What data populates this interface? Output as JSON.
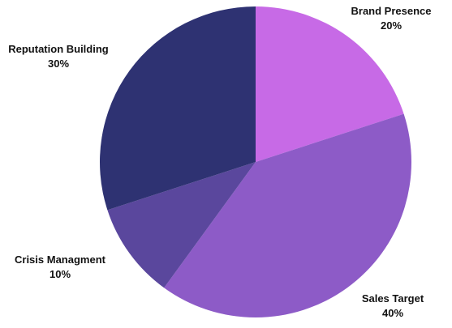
{
  "chart_data": {
    "type": "pie",
    "title": "",
    "slices": [
      {
        "label": "Brand Presence",
        "value": 20,
        "value_label": "20%",
        "color": "#c76ae6"
      },
      {
        "label": "Sales Target",
        "value": 40,
        "value_label": "40%",
        "color": "#8d5bc7"
      },
      {
        "label": "Crisis Managment",
        "value": 10,
        "value_label": "10%",
        "color": "#5a479d"
      },
      {
        "label": "Reputation Building",
        "value": 30,
        "value_label": "30%",
        "color": "#2e3272"
      }
    ],
    "start_angle": "12 o'clock",
    "direction": "clockwise",
    "legend": "none"
  }
}
